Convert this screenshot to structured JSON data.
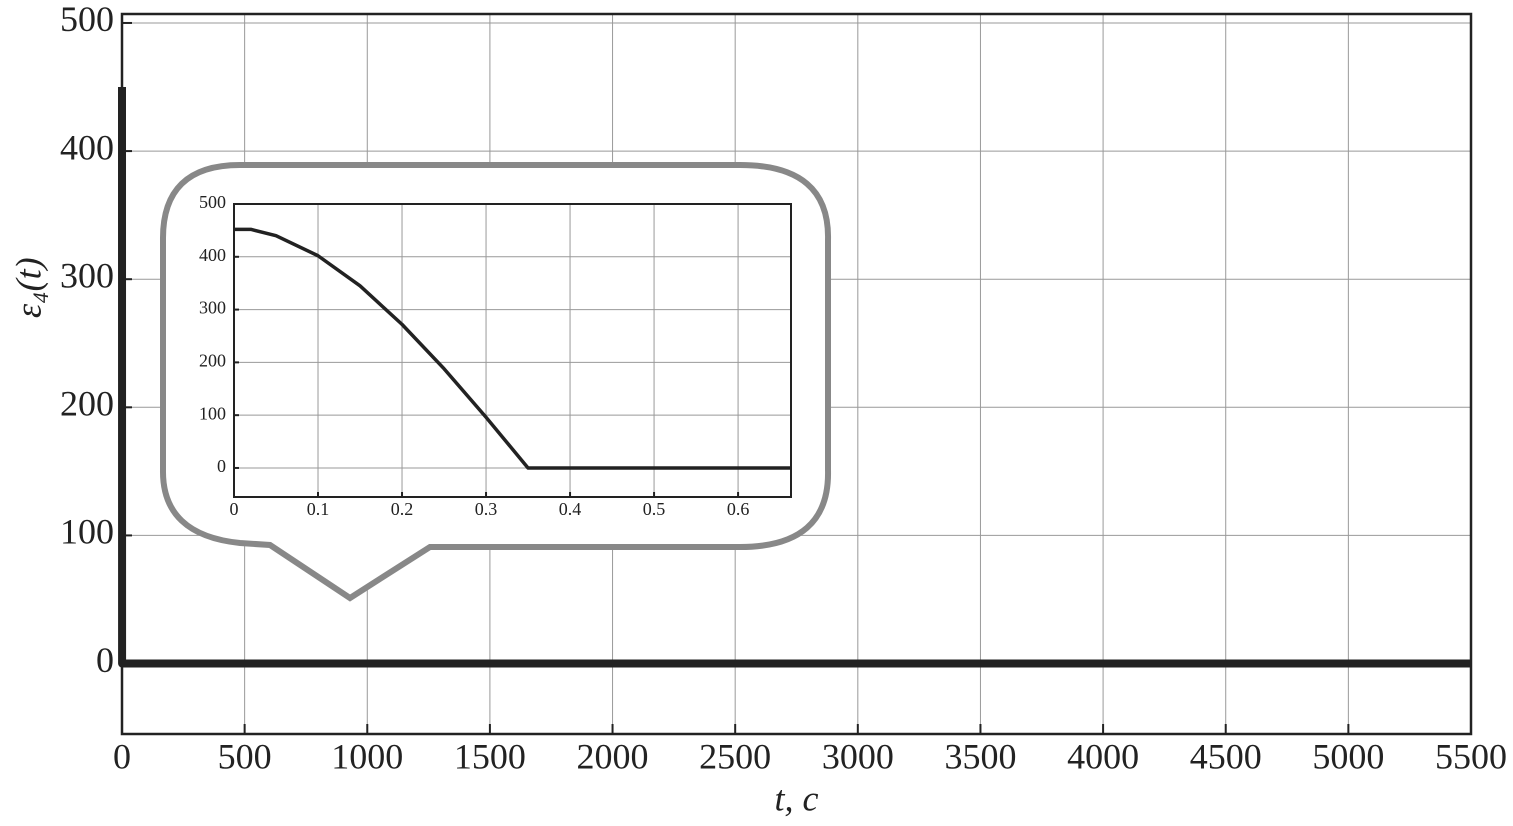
{
  "chart_data": [
    {
      "type": "line",
      "xlabel": "t, c",
      "ylabel": "ε₄(t)",
      "x": [
        0,
        0.35,
        5500
      ],
      "series": [
        {
          "color": "#222222",
          "values": [
            450,
            0,
            0
          ]
        }
      ],
      "xlim": [
        0,
        5500
      ],
      "ylim": [
        -55,
        507
      ],
      "xticks": [
        0,
        500,
        1000,
        1500,
        2000,
        2500,
        3000,
        3500,
        4000,
        4500,
        5000,
        5500
      ],
      "yticks": [
        0,
        100,
        200,
        300,
        400,
        500
      ],
      "grid": true
    },
    {
      "type": "line",
      "x": [
        0,
        0.02,
        0.05,
        0.1,
        0.15,
        0.2,
        0.25,
        0.3,
        0.35,
        0.663
      ],
      "series": [
        {
          "color": "#222222",
          "values": [
            452,
            452,
            440,
            402,
            345,
            272,
            188,
            96,
            0,
            0
          ]
        }
      ],
      "xlim": [
        0,
        0.663
      ],
      "ylim": [
        -55,
        500
      ],
      "xticks": [
        0,
        0.1,
        0.2,
        0.3,
        0.4,
        0.5,
        0.6
      ],
      "yticks": [
        0,
        100,
        200,
        300,
        400,
        500
      ],
      "grid": true
    }
  ]
}
